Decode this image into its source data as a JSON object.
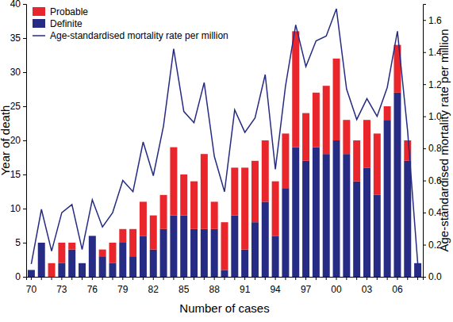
{
  "chart_data": {
    "type": "bar",
    "x_label": "Number of cases",
    "y_label": "Year of death",
    "y2_label": "Age-standardised mortality rate per million",
    "categories": [
      "70",
      null,
      null,
      "73",
      null,
      null,
      "76",
      null,
      null,
      "79",
      null,
      null,
      "82",
      null,
      null,
      "85",
      null,
      null,
      "88",
      null,
      null,
      "91",
      null,
      null,
      "94",
      null,
      null,
      "97",
      null,
      null,
      "00",
      null,
      null,
      "03",
      null,
      null,
      "06",
      null,
      null
    ],
    "stacked": true,
    "legend": "top-left",
    "ylim": [
      0,
      40
    ],
    "yticks": [
      0,
      5,
      10,
      15,
      20,
      25,
      30,
      35,
      40
    ],
    "y2lim": [
      0,
      1.7
    ],
    "y2ticks": [
      {
        "value": 0,
        "label": "0.0"
      },
      0.2,
      0.4,
      0.6,
      0.8,
      {
        "value": 1,
        "label": "1.0"
      },
      1.2,
      1.4,
      1.6
    ],
    "series": [
      {
        "name": "Definite",
        "type": "bar",
        "color": "#262b83",
        "values": [
          1,
          5,
          0,
          2,
          4,
          2,
          6,
          3,
          2,
          5,
          3,
          6,
          4,
          7,
          9,
          9,
          7,
          7,
          7,
          1,
          9,
          4,
          8,
          11,
          6,
          13,
          19,
          17,
          19,
          18,
          20,
          18,
          14,
          16,
          12,
          23,
          27,
          17,
          2
        ]
      },
      {
        "name": "Probable",
        "type": "bar",
        "color": "#e8262b",
        "values": [
          0,
          0,
          2,
          3,
          1,
          0,
          0,
          1,
          3,
          2,
          4,
          5,
          5,
          5,
          10,
          6,
          7,
          11,
          4,
          7,
          7,
          12,
          9,
          9,
          8,
          8,
          17,
          7,
          8,
          10,
          12,
          5,
          6,
          7,
          9,
          2,
          7,
          3,
          0
        ]
      },
      {
        "name": "Age-standardised mortality rate per million",
        "type": "line",
        "axis": "y2",
        "color": "#262b83",
        "values": [
          0.08,
          0.42,
          0.16,
          0.4,
          0.45,
          0.17,
          0.48,
          0.31,
          0.4,
          0.6,
          0.53,
          0.84,
          0.63,
          0.94,
          1.42,
          1.03,
          0.96,
          1.21,
          0.75,
          0.53,
          1.04,
          0.9,
          0.99,
          1.26,
          0.67,
          1.19,
          1.57,
          1.31,
          1.47,
          1.5,
          1.67,
          1.17,
          0.98,
          1.11,
          1.0,
          1.18,
          1.53,
          0.91,
          0.08
        ]
      }
    ]
  }
}
